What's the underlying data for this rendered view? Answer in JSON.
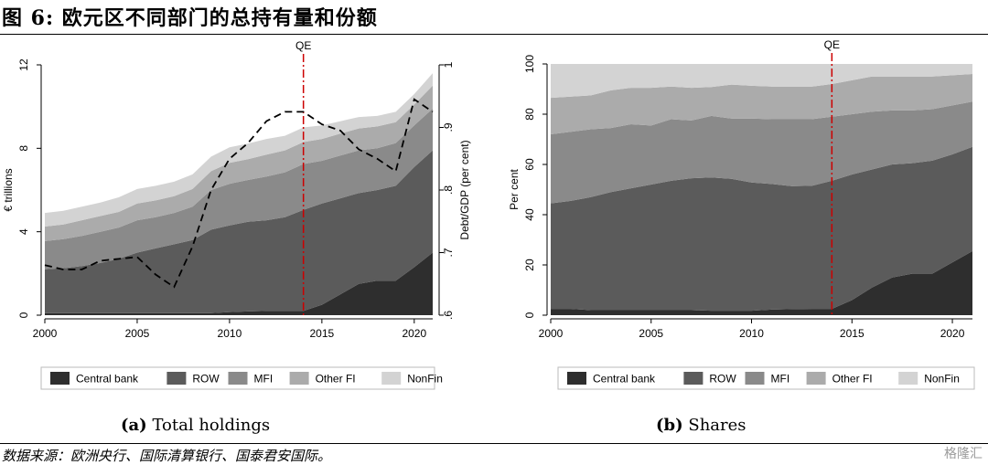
{
  "figure": {
    "title": "图 6: 欧元区不同部门的总持有量和份额",
    "source": "数据来源：欧洲央行、国际清算银行、国泰君安国际。",
    "watermark": "格隆汇"
  },
  "chart_data": [
    {
      "id": "a",
      "type": "area",
      "subtitle_label": "(a)",
      "subtitle_text": "Total holdings",
      "ylabel": "€ trillions",
      "y2label": "Debt/GDP (per cent)",
      "ylim": [
        0,
        12
      ],
      "y2lim": [
        0.6,
        1.0
      ],
      "xlim": [
        2000,
        2021
      ],
      "x_ticks": [
        "2000",
        "2005",
        "2010",
        "2015",
        "2020"
      ],
      "y_ticks": [
        "0",
        "4",
        "8",
        "12"
      ],
      "y2_ticks": [
        ".6",
        ".7",
        ".8",
        ".9",
        "1"
      ],
      "stacked": true,
      "annotation": {
        "label": "QE",
        "x": 2014,
        "color": "#cc0000"
      },
      "x": [
        2000,
        2001,
        2002,
        2003,
        2004,
        2005,
        2006,
        2007,
        2008,
        2009,
        2010,
        2011,
        2012,
        2013,
        2014,
        2015,
        2016,
        2017,
        2018,
        2019,
        2020,
        2021
      ],
      "series": [
        {
          "name": "Central bank",
          "color": "#2e2e2e",
          "values": [
            0.1,
            0.1,
            0.1,
            0.1,
            0.1,
            0.1,
            0.1,
            0.1,
            0.1,
            0.1,
            0.15,
            0.18,
            0.2,
            0.2,
            0.2,
            0.5,
            1.0,
            1.5,
            1.65,
            1.65,
            2.3,
            3.0
          ]
        },
        {
          "name": "ROW",
          "color": "#5b5b5b",
          "values": [
            2.1,
            2.15,
            2.25,
            2.4,
            2.6,
            2.9,
            3.1,
            3.3,
            3.5,
            4.0,
            4.15,
            4.3,
            4.35,
            4.5,
            4.85,
            4.85,
            4.6,
            4.35,
            4.35,
            4.55,
            4.8,
            4.9
          ]
        },
        {
          "name": "MFI",
          "color": "#8a8a8a",
          "values": [
            1.35,
            1.4,
            1.45,
            1.5,
            1.5,
            1.55,
            1.5,
            1.5,
            1.6,
            1.9,
            2.0,
            2.0,
            2.1,
            2.15,
            2.2,
            2.05,
            2.05,
            2.05,
            2.0,
            2.05,
            2.0,
            2.0
          ]
        },
        {
          "name": "Other FI",
          "color": "#ababab",
          "values": [
            0.7,
            0.7,
            0.75,
            0.75,
            0.75,
            0.8,
            0.8,
            0.8,
            0.85,
            0.9,
            1.0,
            1.0,
            1.05,
            1.05,
            1.05,
            1.05,
            1.05,
            1.05,
            1.05,
            1.0,
            1.0,
            1.1
          ]
        },
        {
          "name": "NonFin",
          "color": "#d3d3d3",
          "values": [
            0.65,
            0.65,
            0.65,
            0.65,
            0.7,
            0.7,
            0.7,
            0.7,
            0.7,
            0.7,
            0.75,
            0.75,
            0.75,
            0.7,
            0.7,
            0.65,
            0.6,
            0.55,
            0.5,
            0.5,
            0.5,
            0.6
          ]
        }
      ],
      "secondary_line": {
        "name": "Debt/GDP",
        "style": "dashed",
        "color": "#000000",
        "values": [
          0.68,
          0.673,
          0.673,
          0.687,
          0.69,
          0.693,
          0.665,
          0.645,
          0.71,
          0.8,
          0.85,
          0.875,
          0.91,
          0.925,
          0.925,
          0.905,
          0.895,
          0.865,
          0.85,
          0.83,
          0.945,
          0.925
        ]
      }
    },
    {
      "id": "b",
      "type": "area",
      "subtitle_label": "(b)",
      "subtitle_text": "Shares",
      "ylabel": "Per cent",
      "ylim": [
        0,
        100
      ],
      "xlim": [
        2000,
        2021
      ],
      "x_ticks": [
        "2000",
        "2005",
        "2010",
        "2015",
        "2020"
      ],
      "y_ticks": [
        "0",
        "20",
        "40",
        "60",
        "80",
        "100"
      ],
      "stacked": true,
      "annotation": {
        "label": "QE",
        "x": 2014,
        "color": "#cc0000"
      },
      "x": [
        2000,
        2001,
        2002,
        2003,
        2004,
        2005,
        2006,
        2007,
        2008,
        2009,
        2010,
        2011,
        2012,
        2013,
        2014,
        2015,
        2016,
        2017,
        2018,
        2019,
        2020,
        2021
      ],
      "series": [
        {
          "name": "Central bank",
          "color": "#2e2e2e",
          "values": [
            2.5,
            2.5,
            2,
            2,
            2,
            2,
            2,
            2,
            1.8,
            1.8,
            1.8,
            2.2,
            2.4,
            2.5,
            2.5,
            6,
            11,
            15,
            16.5,
            16.5,
            21,
            25.5
          ]
        },
        {
          "name": "ROW",
          "color": "#5b5b5b",
          "values": [
            42,
            43,
            45,
            47,
            48.5,
            50,
            51.5,
            52.5,
            53,
            52.5,
            51,
            50,
            49,
            49,
            51,
            50,
            47,
            45,
            44,
            45,
            43,
            41.5
          ]
        },
        {
          "name": "MFI",
          "color": "#8a8a8a",
          "values": [
            27.5,
            27.5,
            27,
            25.5,
            25.5,
            23.5,
            24.5,
            23,
            24.5,
            24,
            25.5,
            25.8,
            26.6,
            26.5,
            25.5,
            24,
            23,
            21.5,
            21,
            20.5,
            19.5,
            18
          ]
        },
        {
          "name": "Other FI",
          "color": "#ababab",
          "values": [
            14.5,
            14,
            13.5,
            15,
            14.5,
            15,
            13,
            13,
            11.5,
            13.5,
            13,
            13,
            13,
            13,
            13,
            13.5,
            14,
            13.5,
            13.5,
            13,
            12,
            11
          ]
        },
        {
          "name": "NonFin",
          "color": "#d3d3d3",
          "values": [
            13.5,
            13,
            12.5,
            10.5,
            9.5,
            9.5,
            9,
            9.5,
            9.2,
            8.2,
            8.7,
            9,
            9,
            9,
            8,
            6.5,
            5,
            5,
            5,
            5,
            4.5,
            4
          ]
        }
      ]
    }
  ]
}
